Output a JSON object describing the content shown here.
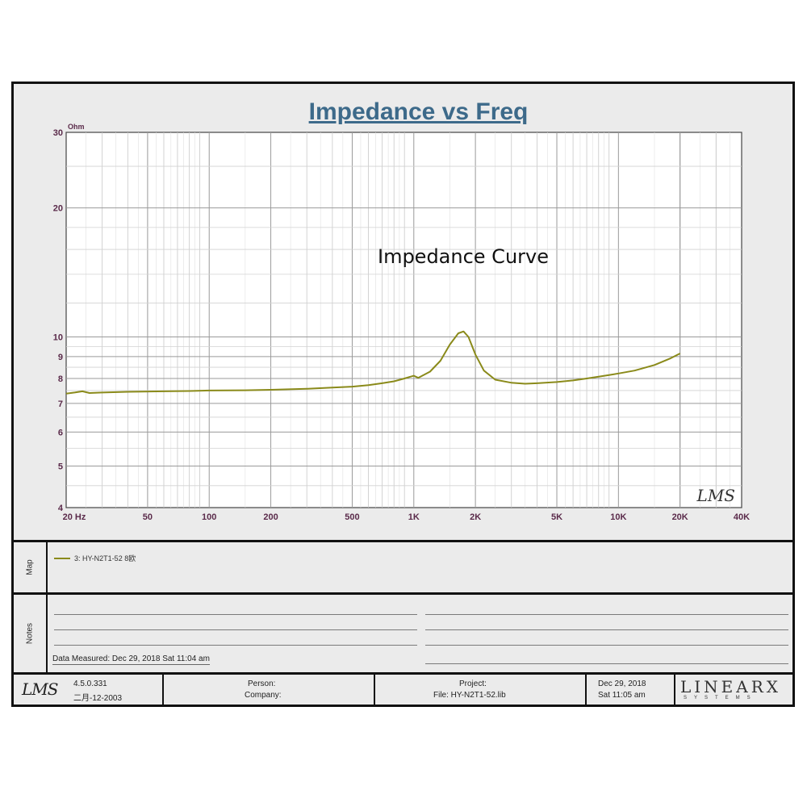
{
  "chart_data": {
    "type": "line",
    "title": "Impedance vs Freq",
    "annotation": "Impedance Curve",
    "y_unit": "Ohm",
    "x_scale": "log",
    "y_scale": "log",
    "xlim": [
      20,
      40000
    ],
    "ylim": [
      4,
      30
    ],
    "grid": true,
    "x_tick_labels": [
      {
        "v": 20,
        "label": "20 Hz"
      },
      {
        "v": 50,
        "label": "50"
      },
      {
        "v": 100,
        "label": "100"
      },
      {
        "v": 200,
        "label": "200"
      },
      {
        "v": 500,
        "label": "500"
      },
      {
        "v": 1000,
        "label": "1K"
      },
      {
        "v": 2000,
        "label": "2K"
      },
      {
        "v": 5000,
        "label": "5K"
      },
      {
        "v": 10000,
        "label": "10K"
      },
      {
        "v": 20000,
        "label": "20K"
      },
      {
        "v": 40000,
        "label": "40K"
      }
    ],
    "y_tick_labels": [
      {
        "v": 30,
        "label": "30"
      },
      {
        "v": 20,
        "label": "20"
      },
      {
        "v": 10,
        "label": "10"
      },
      {
        "v": 9,
        "label": "9"
      },
      {
        "v": 8,
        "label": "8"
      },
      {
        "v": 7,
        "label": "7"
      },
      {
        "v": 6,
        "label": "6"
      },
      {
        "v": 5,
        "label": "5"
      },
      {
        "v": 4,
        "label": "4"
      }
    ],
    "series": [
      {
        "name": "3: HY-N2T1-52 8欧",
        "color": "#8a8a1a",
        "points": [
          [
            20,
            7.38
          ],
          [
            22,
            7.42
          ],
          [
            24,
            7.47
          ],
          [
            26,
            7.4
          ],
          [
            30,
            7.42
          ],
          [
            40,
            7.45
          ],
          [
            60,
            7.47
          ],
          [
            80,
            7.48
          ],
          [
            100,
            7.5
          ],
          [
            150,
            7.51
          ],
          [
            200,
            7.53
          ],
          [
            300,
            7.57
          ],
          [
            400,
            7.62
          ],
          [
            500,
            7.66
          ],
          [
            600,
            7.72
          ],
          [
            700,
            7.8
          ],
          [
            800,
            7.88
          ],
          [
            900,
            8.0
          ],
          [
            1000,
            8.12
          ],
          [
            1050,
            8.03
          ],
          [
            1200,
            8.3
          ],
          [
            1350,
            8.8
          ],
          [
            1500,
            9.6
          ],
          [
            1650,
            10.2
          ],
          [
            1750,
            10.3
          ],
          [
            1850,
            10.0
          ],
          [
            2000,
            9.1
          ],
          [
            2200,
            8.35
          ],
          [
            2500,
            7.95
          ],
          [
            3000,
            7.82
          ],
          [
            3500,
            7.78
          ],
          [
            4000,
            7.8
          ],
          [
            5000,
            7.85
          ],
          [
            6000,
            7.92
          ],
          [
            7000,
            8.0
          ],
          [
            8000,
            8.08
          ],
          [
            9000,
            8.15
          ],
          [
            10000,
            8.22
          ],
          [
            12000,
            8.35
          ],
          [
            15000,
            8.6
          ],
          [
            18000,
            8.92
          ],
          [
            20000,
            9.15
          ]
        ]
      }
    ],
    "watermark": "LMS"
  },
  "map": {
    "label": "Map",
    "legend_text": "3: HY-N2T1-52 8欧"
  },
  "notes": {
    "label": "Notes",
    "measured": "Data Measured: Dec 29, 2018  Sat 11:04 am"
  },
  "footer": {
    "logo": "LMS",
    "version": "4.5.0.331",
    "version_date": "二月-12-2003",
    "person": "Person:",
    "company": "Company:",
    "project": "Project:",
    "file": "File: HY-N2T1-52.lib",
    "date": "Dec 29, 2018",
    "time": "Sat 11:05 am",
    "brand": "LINEARX",
    "brand_sub": "SYSTEMS"
  }
}
